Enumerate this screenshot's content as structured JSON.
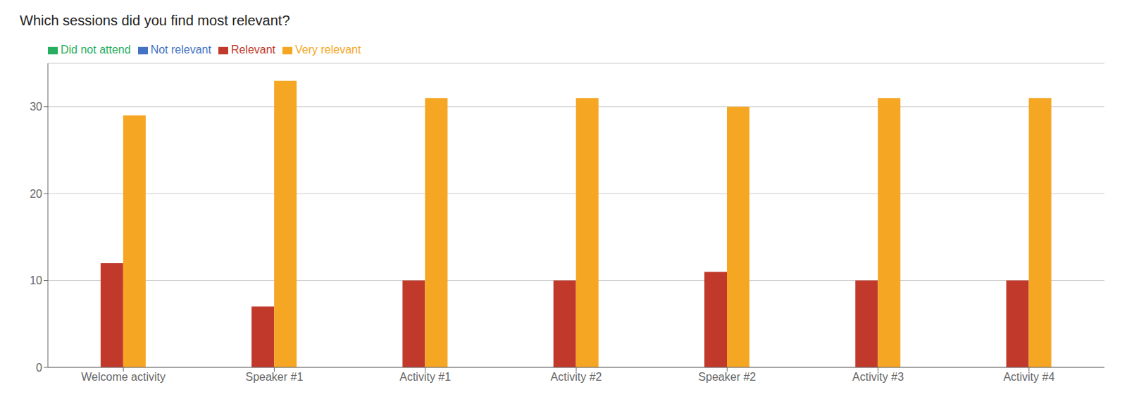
{
  "chart_data": {
    "type": "bar",
    "title": "Which sessions did you find most relevant?",
    "categories": [
      "Welcome activity",
      "Speaker #1",
      "Activity #1",
      "Activity #2",
      "Speaker #2",
      "Activity #3",
      "Activity #4"
    ],
    "series": [
      {
        "name": "Not relevant",
        "color": "#4472C4",
        "values": [
          0,
          0,
          0,
          0,
          0,
          0,
          0
        ]
      },
      {
        "name": "Relevant",
        "color": "#C0392B",
        "values": [
          12,
          7,
          10,
          10,
          11,
          10,
          10
        ]
      },
      {
        "name": "Very relevant",
        "color": "#F5A623",
        "values": [
          29,
          33,
          31,
          31,
          30,
          31,
          31
        ]
      },
      {
        "name": "Did not attend",
        "color": "#27AE60",
        "values": [
          0,
          0,
          0,
          0,
          0,
          0,
          0
        ]
      }
    ],
    "ylim": [
      0,
      35
    ],
    "yticks": [
      0,
      10,
      20,
      30
    ],
    "grid": true,
    "legend": "top-left"
  }
}
